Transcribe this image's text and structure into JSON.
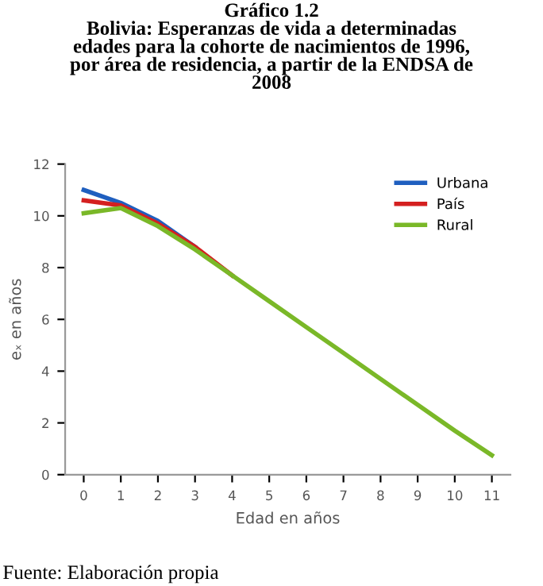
{
  "chart_data": {
    "type": "line",
    "title": "Gráfico 1.2\nBolivia: Esperanzas de vida a determinadas\nedades para la cohorte de nacimientos de 1996,\npor área de residencia, a partir de la ENDSA de\n2008",
    "xlabel": "Edad en años",
    "ylabel": "eₓ en años",
    "categories": [
      "0",
      "1",
      "2",
      "3",
      "4",
      "5",
      "6",
      "7",
      "8",
      "9",
      "10",
      "11"
    ],
    "series": [
      {
        "name": "Urbana",
        "color": "#1f5fbf",
        "values": [
          11.0,
          10.5,
          9.8,
          8.8,
          null,
          null,
          null,
          null,
          null,
          null,
          null,
          null
        ]
      },
      {
        "name": "País",
        "color": "#d42020",
        "values": [
          10.6,
          10.4,
          9.7,
          8.8,
          7.7,
          null,
          null,
          null,
          null,
          null,
          null,
          null
        ]
      },
      {
        "name": "Rural",
        "color": "#7ab828",
        "values": [
          10.1,
          10.3,
          9.6,
          8.7,
          7.7,
          6.7,
          5.7,
          4.7,
          3.7,
          2.7,
          1.7,
          0.75
        ]
      }
    ],
    "ylim": [
      0,
      12
    ],
    "yticks": [
      0,
      2,
      4,
      6,
      8,
      10,
      12
    ],
    "grid": false,
    "legend": "top right",
    "marker": "none",
    "line_style": "solid",
    "annotations": [
      "Fuente: Elaboración propia"
    ]
  }
}
